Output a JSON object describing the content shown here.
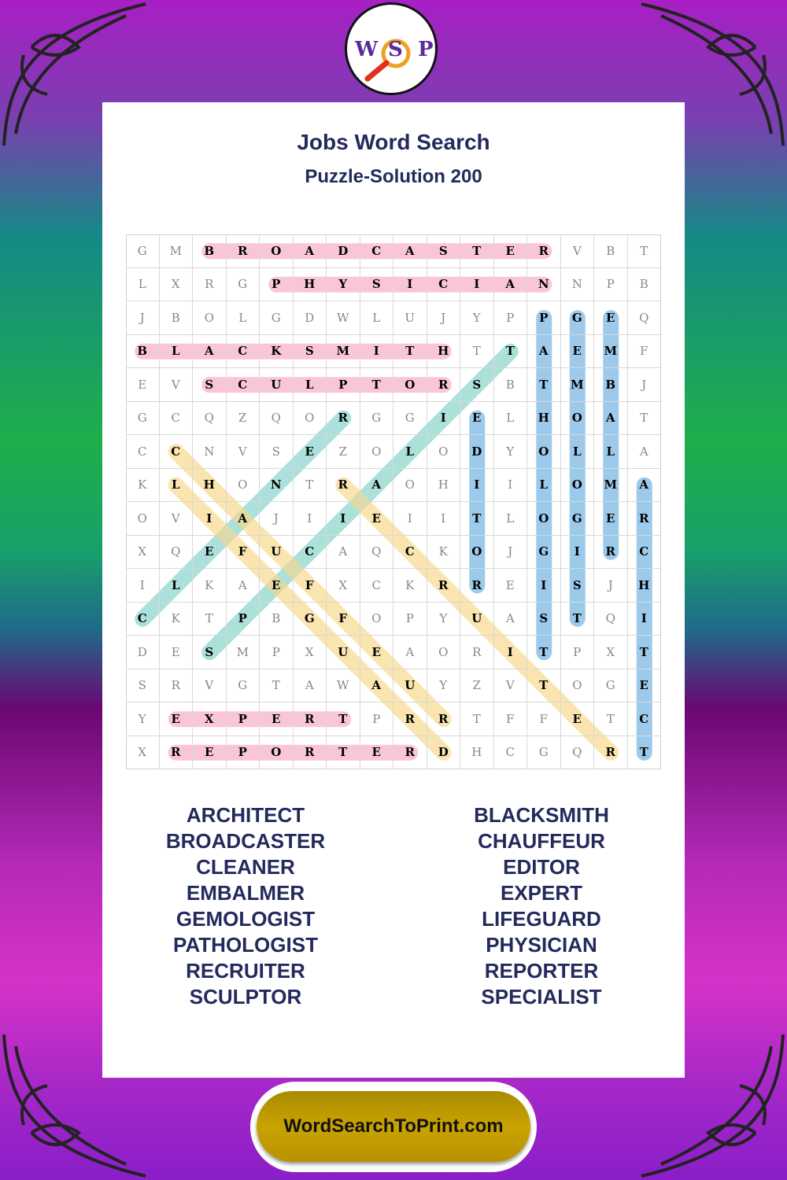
{
  "logo": {
    "letters": [
      "W",
      "S",
      "P"
    ]
  },
  "title": "Jobs Word Search",
  "subtitle": "Puzzle-Solution 200",
  "grid": [
    "GMBROADCASTERVBT",
    "LXRGPHYSICIANNPB",
    "JBOLGDWLUJYPPGEQ",
    "BLACKSMITHTTAEMF",
    "EVSCULPTORSBTMBJ",
    "GCQZQORGGIELHOAT",
    "CCNVSEZOLODYOLLA",
    "KLHONTRAOHIILOMA",
    "OVIAJIIEIITLOGER",
    "XQEFUCAQCKOJGIRC",
    "ILKAEFXCKRREISJH",
    "CKTPBGFOPYUASTQI",
    "DESMPXUEAORITPXT",
    "SRVGTAWAUYZVTOGE",
    "YEXPERTPRRTFFETC",
    "XREPORTERDHCGQRT"
  ],
  "highlight_colors": {
    "horizontal": "#f6a8c0",
    "vertical": "#6aaee0",
    "diagonal_up": "#7fd0c8",
    "diagonal_down": "#f8d888"
  },
  "solutions": [
    {
      "word": "BROADCASTER",
      "start": [
        0,
        2
      ],
      "end": [
        0,
        12
      ],
      "dir": "horizontal"
    },
    {
      "word": "PHYSICIAN",
      "start": [
        1,
        4
      ],
      "end": [
        1,
        12
      ],
      "dir": "horizontal"
    },
    {
      "word": "BLACKSMITH",
      "start": [
        3,
        0
      ],
      "end": [
        3,
        9
      ],
      "dir": "horizontal"
    },
    {
      "word": "SCULPTOR",
      "start": [
        4,
        2
      ],
      "end": [
        4,
        9
      ],
      "dir": "horizontal"
    },
    {
      "word": "EXPERT",
      "start": [
        14,
        1
      ],
      "end": [
        14,
        6
      ],
      "dir": "horizontal"
    },
    {
      "word": "REPORTER",
      "start": [
        15,
        1
      ],
      "end": [
        15,
        8
      ],
      "dir": "horizontal"
    },
    {
      "word": "PATHOLOGIST",
      "start": [
        2,
        12
      ],
      "end": [
        12,
        12
      ],
      "dir": "vertical"
    },
    {
      "word": "GEMOLOGIST",
      "start": [
        2,
        13
      ],
      "end": [
        11,
        13
      ],
      "dir": "vertical"
    },
    {
      "word": "EMBALMER",
      "start": [
        2,
        14
      ],
      "end": [
        9,
        14
      ],
      "dir": "vertical"
    },
    {
      "word": "EDITOR",
      "start": [
        5,
        10
      ],
      "end": [
        10,
        10
      ],
      "dir": "vertical"
    },
    {
      "word": "ARCHITECT",
      "start": [
        7,
        15
      ],
      "end": [
        15,
        15
      ],
      "dir": "vertical"
    },
    {
      "word": "CLEANER",
      "start": [
        11,
        0
      ],
      "end": [
        5,
        6
      ],
      "dir": "diagonal_up"
    },
    {
      "word": "SPECIALIST",
      "start": [
        12,
        2
      ],
      "end": [
        3,
        11
      ],
      "dir": "diagonal_up"
    },
    {
      "word": "CHAUFFEUR",
      "start": [
        6,
        1
      ],
      "end": [
        14,
        9
      ],
      "dir": "diagonal_down"
    },
    {
      "word": "LIFEGUARD",
      "start": [
        7,
        1
      ],
      "end": [
        15,
        9
      ],
      "dir": "diagonal_down"
    },
    {
      "word": "RECRUITER",
      "start": [
        7,
        6
      ],
      "end": [
        15,
        14
      ],
      "dir": "diagonal_down"
    }
  ],
  "word_list": {
    "left": [
      "ARCHITECT",
      "BROADCASTER",
      "CLEANER",
      "EMBALMER",
      "GEMOLOGIST",
      "PATHOLOGIST",
      "RECRUITER",
      "SCULPTOR"
    ],
    "right": [
      "BLACKSMITH",
      "CHAUFFEUR",
      "EDITOR",
      "EXPERT",
      "LIFEGUARD",
      "PHYSICIAN",
      "REPORTER",
      "SPECIALIST"
    ]
  },
  "footer": {
    "site": "WordSearchToPrint.com"
  }
}
